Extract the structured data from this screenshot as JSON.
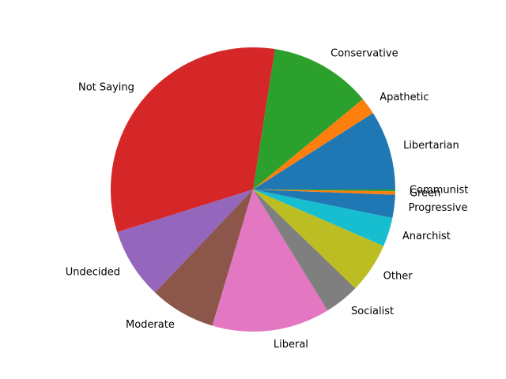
{
  "chart_data": {
    "type": "pie",
    "title": "",
    "start_angle_deg": 0,
    "direction": "counterclockwise",
    "slices": [
      {
        "label": "Libertarian",
        "value": 9.3,
        "color": "#1f77b4"
      },
      {
        "label": "Apathetic",
        "value": 2.0,
        "color": "#ff7f0e"
      },
      {
        "label": "Conservative",
        "value": 11.9,
        "color": "#2ca02c"
      },
      {
        "label": "Not Saying",
        "value": 33.3,
        "color": "#d62728"
      },
      {
        "label": "Undecided",
        "value": 8.3,
        "color": "#9467bd"
      },
      {
        "label": "Moderate",
        "value": 7.7,
        "color": "#8c564b"
      },
      {
        "label": "Liberal",
        "value": 13.8,
        "color": "#e377c2"
      },
      {
        "label": "Socialist",
        "value": 4.1,
        "color": "#7f7f7f"
      },
      {
        "label": "Other",
        "value": 5.9,
        "color": "#bcbd22"
      },
      {
        "label": "Anarchist",
        "value": 3.4,
        "color": "#17becf"
      },
      {
        "label": "Progressive",
        "value": 2.7,
        "color": "#1f77b4"
      },
      {
        "label": "Green",
        "value": 0.4,
        "color": "#ff7f0e"
      },
      {
        "label": "Communist",
        "value": 0.2,
        "color": "#2ca02c"
      }
    ]
  }
}
